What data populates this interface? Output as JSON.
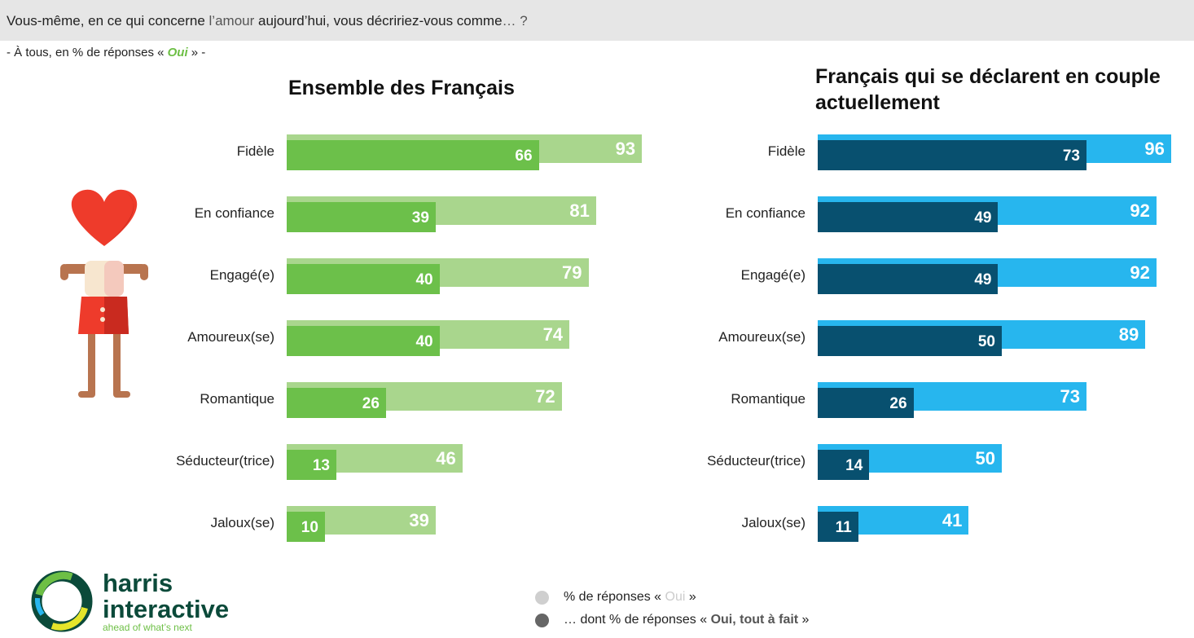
{
  "header": {
    "question_part1": "Vous-même, en ce qui concerne ",
    "question_part2": "l’amour",
    "question_part3": " aujourd’hui, vous décririez-vous comme",
    "question_part4": "… ?",
    "subtitle_prefix": "- À tous, en % de réponses « ",
    "subtitle_oui": "Oui",
    "subtitle_suffix": " » -"
  },
  "colors": {
    "green_light": "#a9d68d",
    "green_dark": "#6cc04a",
    "blue_light": "#27b6ee",
    "blue_dark": "#08506f",
    "heart": "#ee3b2b"
  },
  "illustration": {
    "icon": "person-with-heart-icon"
  },
  "legend": {
    "item1_prefix": "% de réponses « ",
    "item1_oui": "Oui",
    "item1_suffix": " »",
    "item2_prefix": "… dont % de réponses « ",
    "item2_strong": "Oui, tout à fait",
    "item2_suffix": " »"
  },
  "logo": {
    "name_line1": "harris",
    "name_line2": "interactive",
    "tagline": "ahead of what’s next",
    "icon": "harris-ring-logo-icon"
  },
  "chart_data": [
    {
      "type": "bar",
      "orientation": "horizontal",
      "title": "Ensemble des Français",
      "categories": [
        "Fidèle",
        "En confiance",
        "Engagé(e)",
        "Amoureux(se)",
        "Romantique",
        "Séducteur(trice)",
        "Jaloux(se)"
      ],
      "series": [
        {
          "name": "% de réponses « Oui »",
          "values": [
            93,
            81,
            79,
            74,
            72,
            46,
            39
          ]
        },
        {
          "name": "… dont % de réponses « Oui, tout à fait »",
          "values": [
            66,
            39,
            40,
            40,
            26,
            13,
            10
          ]
        }
      ],
      "xlim": [
        0,
        100
      ]
    },
    {
      "type": "bar",
      "orientation": "horizontal",
      "title": "Français qui se déclarent en couple actuellement",
      "categories": [
        "Fidèle",
        "En confiance",
        "Engagé(e)",
        "Amoureux(se)",
        "Romantique",
        "Séducteur(trice)",
        "Jaloux(se)"
      ],
      "series": [
        {
          "name": "% de réponses « Oui »",
          "values": [
            96,
            92,
            92,
            89,
            73,
            50,
            41
          ]
        },
        {
          "name": "… dont % de réponses « Oui, tout à fait »",
          "values": [
            73,
            49,
            49,
            50,
            26,
            14,
            11
          ]
        }
      ],
      "xlim": [
        0,
        100
      ]
    }
  ]
}
